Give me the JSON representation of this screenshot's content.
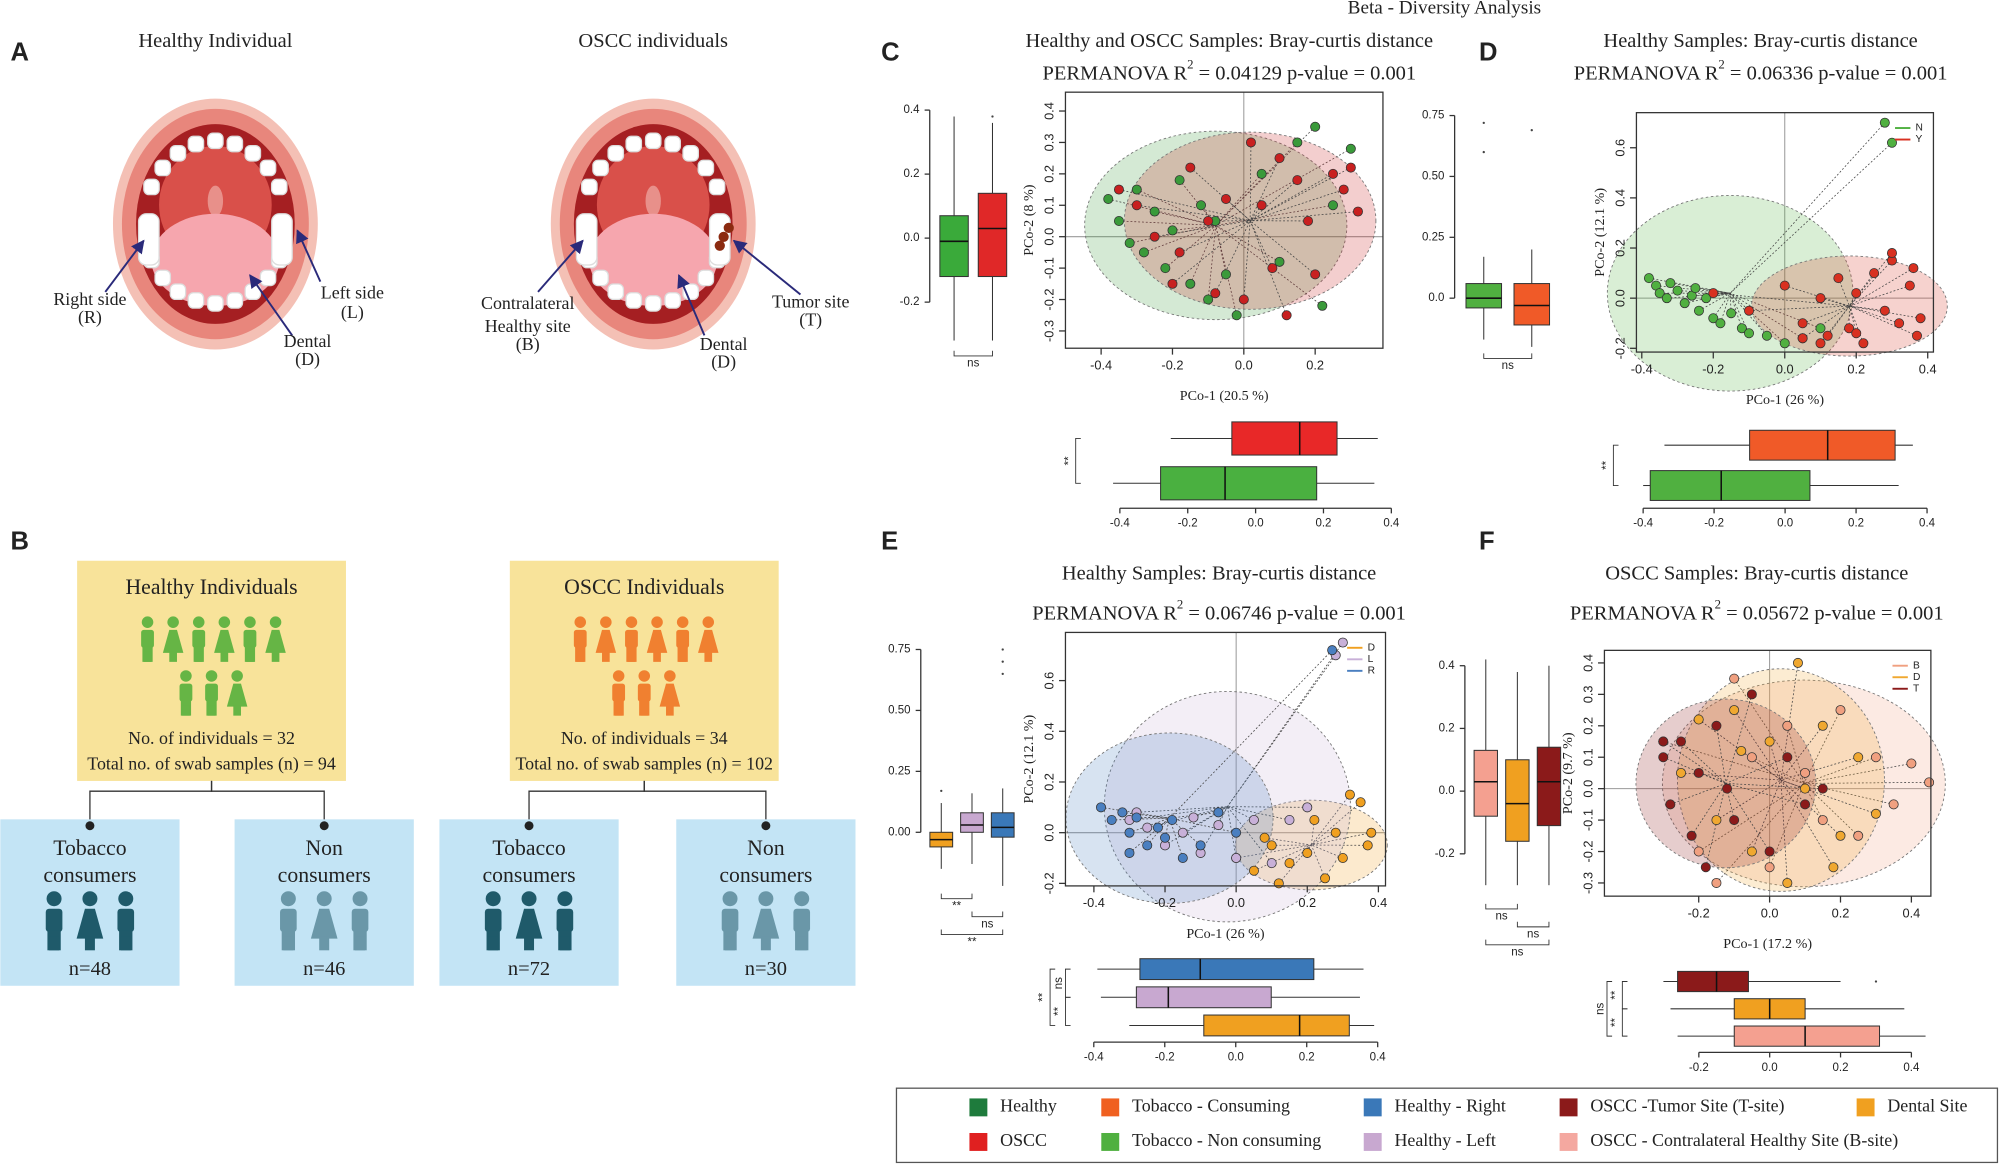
{
  "figure_title": "Beta - Diversity Analysis",
  "panel_labels": [
    "A",
    "B",
    "C",
    "D",
    "E",
    "F"
  ],
  "panel_a": {
    "healthy": {
      "title": "Healthy Individual",
      "right": [
        "Right side",
        "(R)"
      ],
      "left": [
        "Left side",
        "(L)"
      ],
      "dental": [
        "Dental",
        "(D)"
      ]
    },
    "oscc": {
      "title": "OSCC individuals",
      "healthy_site": [
        "Contralateral",
        "Healthy site",
        "(B)"
      ],
      "tumor": [
        "Tumor site",
        "(T)"
      ],
      "dental": [
        "Dental",
        "(D)"
      ]
    }
  },
  "panel_b": {
    "groups": [
      {
        "title": "Healthy Individuals",
        "individuals": "No. of individuals = 32",
        "samples": "Total no. of swab samples (n) = 94",
        "subgroups": [
          {
            "label": [
              "Tobacco",
              "consumers"
            ],
            "n": "n=48"
          },
          {
            "label": [
              "Non",
              "consumers"
            ],
            "n": "n=46"
          }
        ]
      },
      {
        "title": "OSCC Individuals",
        "individuals": "No. of individuals = 34",
        "samples": "Total no. of swab samples (n) = 102",
        "subgroups": [
          {
            "label": [
              "Tobacco",
              "consumers"
            ],
            "n": "n=72"
          },
          {
            "label": [
              "Non",
              "consumers"
            ],
            "n": "n=30"
          }
        ]
      }
    ]
  },
  "legend": [
    {
      "name": "Healthy",
      "color": "#1e7b3c"
    },
    {
      "name": "OSCC",
      "color": "#e02020"
    },
    {
      "name": "Tobacco - Consuming",
      "color": "#f06020"
    },
    {
      "name": "Tobacco - Non consuming",
      "color": "#50b040"
    },
    {
      "name": "Healthy - Right",
      "color": "#3a78b8"
    },
    {
      "name": "Healthy - Left",
      "color": "#c8a8d0"
    },
    {
      "name": "OSCC -Tumor Site (T-site)",
      "color": "#8b1a1a"
    },
    {
      "name": "OSCC - Contralateral Healthy Site (B-site)",
      "color": "#f4a8a0"
    },
    {
      "name": "Dental Site",
      "color": "#f0a020"
    }
  ],
  "chart_data": [
    {
      "type": "scatter",
      "title": "Healthy and OSCC Samples: Bray-curtis distance",
      "permanova": {
        "label": "PERMANOVA R",
        "sup": "2",
        "text": " = 0.04129  p-value =  0.001"
      },
      "xlabel": "PCo-1 (20.5 %)",
      "ylabel": "PCo-2 (8 %)",
      "xlim": [
        -0.5,
        0.39
      ],
      "ylim": [
        -0.355,
        0.46
      ],
      "xticks": [
        -0.4,
        -0.2,
        {
          "value": 0,
          "label": "0.0"
        },
        0.2
      ],
      "yticks": [
        -0.3,
        -0.2,
        -0.1,
        {
          "value": 0,
          "label": "0.0"
        },
        0.1,
        0.2,
        0.3,
        0.4
      ],
      "series": [
        {
          "color": "#3a9a3a",
          "x": [
            -0.38,
            -0.35,
            -0.3,
            -0.28,
            -0.25,
            -0.22,
            -0.2,
            -0.18,
            -0.15,
            -0.12,
            -0.1,
            -0.08,
            -0.05,
            -0.02,
            0.05,
            0.1,
            0.15,
            0.2,
            0.22,
            0.25,
            0.3,
            -0.32
          ],
          "values": [
            0.12,
            0.05,
            0.15,
            -0.05,
            0.08,
            -0.1,
            0.02,
            0.18,
            -0.15,
            0.1,
            -0.2,
            0.05,
            -0.12,
            -0.25,
            0.2,
            -0.08,
            0.3,
            0.35,
            -0.22,
            0.1,
            0.28,
            -0.02
          ]
        },
        {
          "color": "#c82020",
          "x": [
            -0.35,
            -0.3,
            -0.25,
            -0.2,
            -0.15,
            -0.1,
            -0.08,
            -0.05,
            0.0,
            0.02,
            0.05,
            0.08,
            0.1,
            0.12,
            0.15,
            0.18,
            0.2,
            0.25,
            0.28,
            0.3,
            0.32,
            -0.18
          ],
          "values": [
            0.15,
            0.1,
            0.0,
            -0.15,
            0.22,
            0.05,
            -0.18,
            0.12,
            -0.2,
            0.3,
            0.1,
            -0.1,
            0.25,
            -0.25,
            0.18,
            0.05,
            -0.12,
            0.2,
            0.15,
            0.22,
            0.08,
            -0.05
          ]
        }
      ]
    },
    {
      "type": "box",
      "orientation": "vertical",
      "ylim": [
        -0.328,
        0.456
      ],
      "yticks": [
        -0.2,
        {
          "value": 0,
          "label": "0.0"
        },
        0.2,
        0.4
      ],
      "annotations": [
        "ns"
      ],
      "series": [
        {
          "color": "#3aaa3a",
          "values": [
            -0.32,
            -0.12,
            -0.01,
            0.07,
            0.38
          ]
        },
        {
          "color": "#e02828",
          "values": [
            -0.32,
            -0.12,
            0.03,
            0.14,
            0.36
          ],
          "outliers": [
            0.38
          ]
        }
      ]
    },
    {
      "type": "box",
      "orientation": "horizontal",
      "xlim": [
        -0.5,
        0.413
      ],
      "xticks": [
        -0.4,
        -0.2,
        {
          "value": 0,
          "label": "0.0"
        },
        0.2,
        0.4
      ],
      "annotations": [
        "**"
      ],
      "series": [
        {
          "color": "#e82828",
          "values": [
            -0.25,
            -0.07,
            0.13,
            0.24,
            0.36
          ]
        },
        {
          "color": "#4ab040",
          "values": [
            -0.42,
            -0.28,
            -0.09,
            0.18,
            0.35
          ]
        }
      ]
    },
    {
      "type": "scatter",
      "title": "Healthy Samples: Bray-curtis distance",
      "permanova": {
        "label": "PERMANOVA R",
        "sup": "2",
        "text": " = 0.06336  p-value =  0.001"
      },
      "xlabel": "PCo-1 (26 %)",
      "ylabel": "PCo-2 (12.1 %)",
      "xlim": [
        -0.415,
        0.416
      ],
      "ylim": [
        -0.215,
        0.74
      ],
      "legend": "top-right",
      "xticks": [
        -0.4,
        -0.2,
        {
          "value": 0,
          "label": "0.0"
        },
        0.2,
        0.4
      ],
      "yticks": [
        -0.2,
        {
          "value": 0,
          "label": "0.0"
        },
        0.2,
        0.4,
        0.6
      ],
      "series": [
        {
          "name": "N",
          "color": "#50b040",
          "x": [
            -0.38,
            -0.36,
            -0.35,
            -0.33,
            -0.3,
            -0.28,
            -0.26,
            -0.24,
            -0.22,
            -0.2,
            -0.18,
            -0.15,
            -0.12,
            -0.1,
            -0.05,
            0.0,
            0.05,
            0.1,
            0.28,
            0.3,
            -0.32,
            -0.25
          ],
          "values": [
            0.08,
            0.05,
            0.02,
            0.0,
            0.03,
            -0.02,
            0.01,
            -0.05,
            0.0,
            -0.08,
            -0.1,
            -0.06,
            -0.12,
            -0.14,
            -0.15,
            -0.18,
            -0.16,
            -0.12,
            0.7,
            0.62,
            0.06,
            0.04
          ]
        },
        {
          "name": "Y",
          "color": "#d83020",
          "x": [
            -0.2,
            -0.1,
            0.0,
            0.05,
            0.1,
            0.12,
            0.15,
            0.18,
            0.2,
            0.22,
            0.25,
            0.28,
            0.3,
            0.32,
            0.35,
            0.37,
            0.38,
            0.1,
            0.2,
            0.3,
            0.36,
            0.05
          ],
          "values": [
            0.02,
            -0.05,
            0.05,
            -0.1,
            0.0,
            -0.15,
            0.08,
            -0.12,
            0.02,
            -0.18,
            0.1,
            -0.05,
            0.15,
            -0.1,
            0.05,
            -0.15,
            -0.08,
            -0.18,
            -0.14,
            0.18,
            0.12,
            -0.16
          ]
        }
      ]
    },
    {
      "type": "box",
      "orientation": "vertical",
      "ylim": [
        -0.195,
        0.846
      ],
      "yticks": [
        {
          "value": 0,
          "label": "0.0"
        },
        0.25,
        {
          "value": 0.5,
          "label": "0.50"
        },
        0.75
      ],
      "annotations": [
        "ns"
      ],
      "series": [
        {
          "color": "#50b040",
          "values": [
            -0.17,
            -0.04,
            0.0,
            0.06,
            0.17
          ],
          "outliers": [
            0.72,
            0.6
          ]
        },
        {
          "color": "#f05a28",
          "values": [
            -0.2,
            -0.11,
            -0.03,
            0.06,
            0.2
          ],
          "outliers": [
            0.69
          ]
        }
      ]
    },
    {
      "type": "box",
      "orientation": "horizontal",
      "xlim": [
        -0.455,
        0.418
      ],
      "xticks": [
        -0.4,
        -0.2,
        {
          "value": 0,
          "label": "0.0"
        },
        0.2,
        0.4
      ],
      "annotations": [
        "**"
      ],
      "series": [
        {
          "color": "#f05a28",
          "values": [
            -0.34,
            -0.1,
            0.12,
            0.31,
            0.36
          ]
        },
        {
          "color": "#50b040",
          "values": [
            -0.4,
            -0.38,
            -0.18,
            0.07,
            0.32
          ]
        }
      ]
    },
    {
      "type": "scatter",
      "title": "Healthy Samples: Bray-curtis distance",
      "permanova": {
        "label": "PERMANOVA R",
        "sup": "2",
        "text": " = 0.06746  p-value = 0.001"
      },
      "xlabel": "PCo-1 (26 %)",
      "ylabel": "PCo-2 (12.1 %)",
      "xlim": [
        -0.48,
        0.42
      ],
      "ylim": [
        -0.21,
        0.79
      ],
      "legend": "top-right",
      "xticks": [
        -0.4,
        -0.2,
        {
          "value": 0,
          "label": "0.0"
        },
        0.2,
        0.4
      ],
      "yticks": [
        -0.2,
        {
          "value": 0,
          "label": "0.0"
        },
        0.2,
        0.4,
        0.6
      ],
      "series": [
        {
          "name": "D",
          "color": "#f0a020",
          "x": [
            0.0,
            0.05,
            0.1,
            0.15,
            0.2,
            0.25,
            0.28,
            0.3,
            0.35,
            0.37,
            0.12,
            0.22,
            0.32,
            0.38,
            0.08
          ],
          "values": [
            -0.1,
            -0.15,
            -0.05,
            -0.12,
            -0.08,
            -0.18,
            0.0,
            -0.1,
            0.12,
            -0.05,
            -0.2,
            0.05,
            0.15,
            0.0,
            -0.02
          ]
        },
        {
          "name": "L",
          "color": "#c8b0d8",
          "x": [
            -0.3,
            -0.25,
            -0.2,
            -0.15,
            -0.1,
            -0.05,
            0.0,
            0.05,
            0.1,
            0.2,
            0.3,
            -0.28,
            -0.12,
            0.15,
            0.28
          ],
          "values": [
            0.05,
            0.02,
            -0.05,
            0.0,
            -0.08,
            0.03,
            -0.1,
            0.05,
            -0.12,
            0.1,
            0.75,
            0.08,
            0.06,
            0.05,
            0.7
          ]
        },
        {
          "name": "R",
          "color": "#4a7fc0",
          "x": [
            -0.38,
            -0.35,
            -0.32,
            -0.3,
            -0.28,
            -0.25,
            -0.22,
            -0.2,
            -0.18,
            -0.15,
            -0.1,
            -0.05,
            0.0,
            0.27,
            -0.3
          ],
          "values": [
            0.1,
            0.05,
            0.08,
            0.0,
            0.06,
            -0.05,
            0.02,
            -0.02,
            0.05,
            -0.1,
            -0.05,
            0.08,
            0.0,
            0.72,
            -0.08
          ]
        }
      ]
    },
    {
      "type": "box",
      "orientation": "vertical",
      "ylim": [
        -0.22,
        0.82
      ],
      "yticks": [
        {
          "value": 0,
          "label": "0.00"
        },
        0.25,
        {
          "value": 0.5,
          "label": "0.50"
        },
        0.75
      ],
      "annotations": [
        "**",
        "ns",
        "**"
      ],
      "series": [
        {
          "color": "#f0a020",
          "values": [
            -0.15,
            -0.06,
            -0.03,
            0.0,
            0.12
          ],
          "outliers": [
            0.17
          ]
        },
        {
          "color": "#c8a8d0",
          "values": [
            -0.13,
            0.0,
            0.03,
            0.08,
            0.16
          ]
        },
        {
          "color": "#3a78b8",
          "values": [
            -0.22,
            -0.02,
            0.02,
            0.08,
            0.18
          ],
          "outliers": [
            0.75,
            0.7,
            0.65
          ]
        }
      ]
    },
    {
      "type": "box",
      "orientation": "horizontal",
      "xlim": [
        -0.451,
        0.422
      ],
      "xticks": [
        -0.4,
        -0.2,
        {
          "value": 0,
          "label": "0.0"
        },
        0.2,
        0.4
      ],
      "annotations": [
        "ns",
        "**",
        "**"
      ],
      "series": [
        {
          "color": "#3a78b8",
          "values": [
            -0.39,
            -0.27,
            -0.1,
            0.22,
            0.36
          ]
        },
        {
          "color": "#c8a8d0",
          "values": [
            -0.38,
            -0.28,
            -0.19,
            0.1,
            0.35
          ]
        },
        {
          "color": "#f0a020",
          "values": [
            -0.3,
            -0.09,
            0.18,
            0.32,
            0.39
          ]
        }
      ]
    },
    {
      "type": "scatter",
      "title": "OSCC Samples: Bray-curtis distance",
      "permanova": {
        "label": "PERMANOVA R",
        "sup": "2",
        "text": " = 0.05672  p-value =  0.001"
      },
      "xlabel": "PCo-1 (17.2 %)",
      "ylabel": "PCo-2 (9.7 %)",
      "xlim": [
        -0.466,
        0.455
      ],
      "ylim": [
        -0.342,
        0.44
      ],
      "legend": "top-right",
      "xticks": [
        -0.2,
        {
          "value": 0,
          "label": "0.0"
        },
        0.2,
        0.4
      ],
      "yticks": [
        -0.3,
        -0.2,
        -0.1,
        {
          "value": 0,
          "label": "0.0"
        },
        0.1,
        0.2,
        0.3,
        0.4
      ],
      "series": [
        {
          "name": "B",
          "color": "#f0a080",
          "x": [
            -0.3,
            -0.2,
            -0.1,
            -0.05,
            0.0,
            0.05,
            0.1,
            0.15,
            0.2,
            0.25,
            0.3,
            0.35,
            0.4,
            0.45,
            -0.15
          ],
          "values": [
            0.15,
            -0.2,
            0.35,
            0.1,
            -0.25,
            0.2,
            0.05,
            -0.1,
            0.25,
            -0.15,
            0.1,
            -0.05,
            0.08,
            0.02,
            -0.3
          ]
        },
        {
          "name": "D",
          "color": "#f0a830",
          "x": [
            -0.25,
            -0.15,
            -0.1,
            -0.05,
            0.0,
            0.05,
            0.1,
            0.15,
            0.2,
            0.25,
            0.3,
            -0.2,
            0.08,
            0.18,
            -0.08
          ],
          "values": [
            0.05,
            -0.1,
            0.25,
            -0.2,
            0.15,
            -0.3,
            0.0,
            0.2,
            -0.15,
            0.1,
            -0.08,
            0.22,
            0.4,
            -0.25,
            0.12
          ]
        },
        {
          "name": "T",
          "color": "#8b1a1a",
          "x": [
            -0.3,
            -0.28,
            -0.25,
            -0.22,
            -0.2,
            -0.18,
            -0.15,
            -0.12,
            -0.1,
            -0.05,
            0.0,
            0.05,
            0.1,
            -0.3,
            0.15
          ],
          "values": [
            0.1,
            -0.05,
            0.15,
            -0.15,
            0.05,
            -0.25,
            0.2,
            0.0,
            -0.1,
            0.3,
            -0.2,
            0.1,
            -0.05,
            0.15,
            0.0
          ]
        }
      ]
    },
    {
      "type": "box",
      "orientation": "vertical",
      "ylim": [
        -0.335,
        0.449
      ],
      "yticks": [
        -0.2,
        {
          "value": 0,
          "label": "0.0"
        },
        0.2,
        0.4
      ],
      "annotations": [
        "ns",
        "ns",
        "ns"
      ],
      "series": [
        {
          "color": "#f4a090",
          "values": [
            -0.3,
            -0.08,
            0.03,
            0.13,
            0.42
          ]
        },
        {
          "color": "#f0a020",
          "values": [
            -0.3,
            -0.16,
            -0.04,
            0.1,
            0.38
          ]
        },
        {
          "color": "#8b1a1a",
          "values": [
            -0.3,
            -0.11,
            0.03,
            0.14,
            0.4
          ]
        }
      ]
    },
    {
      "type": "box",
      "orientation": "horizontal",
      "xlim": [
        -0.387,
        0.455
      ],
      "xticks": [
        -0.2,
        {
          "value": 0,
          "label": "0.0"
        },
        0.2,
        0.4
      ],
      "annotations": [
        "**",
        "ns",
        "**"
      ],
      "series": [
        {
          "color": "#8b1a1a",
          "values": [
            -0.3,
            -0.26,
            -0.15,
            -0.06,
            0.2
          ],
          "outliers": [
            0.3
          ]
        },
        {
          "color": "#f0a020",
          "values": [
            -0.28,
            -0.1,
            0.0,
            0.1,
            0.38
          ]
        },
        {
          "color": "#f4a090",
          "values": [
            -0.26,
            -0.1,
            0.1,
            0.31,
            0.44
          ]
        }
      ]
    }
  ]
}
